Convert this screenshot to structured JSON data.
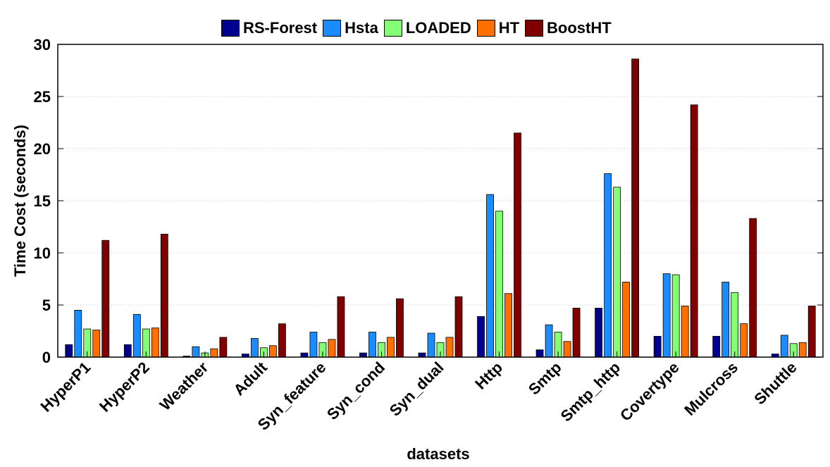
{
  "chart_data": {
    "type": "bar",
    "title": "",
    "xlabel": "datasets",
    "ylabel": "Time Cost (seconds)",
    "ylim": [
      0,
      30
    ],
    "yticks": [
      0,
      5,
      10,
      15,
      20,
      25,
      30
    ],
    "grid": "horizontal dotted",
    "legend_position": "top",
    "categories": [
      "HyperP1",
      "HyperP2",
      "Weather",
      "Adult",
      "Syn_feature",
      "Syn_cond",
      "Syn_dual",
      "Http",
      "Smtp",
      "Smtp_http",
      "Covertype",
      "Mulcross",
      "Shuttle"
    ],
    "series": [
      {
        "name": "RS-Forest",
        "color": "#00008f",
        "values": [
          1.2,
          1.2,
          0.1,
          0.3,
          0.4,
          0.4,
          0.4,
          3.9,
          0.7,
          4.7,
          2.0,
          2.0,
          0.3
        ]
      },
      {
        "name": "Hsta",
        "color": "#1a8cff",
        "values": [
          4.5,
          4.1,
          1.0,
          1.8,
          2.4,
          2.4,
          2.3,
          15.6,
          3.1,
          17.6,
          8.0,
          7.2,
          2.1
        ]
      },
      {
        "name": "LOADED",
        "color": "#85ff73",
        "values": [
          2.7,
          2.7,
          0.4,
          0.9,
          1.4,
          1.4,
          1.4,
          14.0,
          2.4,
          16.3,
          7.9,
          6.2,
          1.3
        ]
      },
      {
        "name": "HT",
        "color": "#ff7000",
        "values": [
          2.6,
          2.8,
          0.8,
          1.1,
          1.7,
          1.9,
          1.9,
          6.1,
          1.5,
          7.2,
          4.9,
          3.2,
          1.4
        ]
      },
      {
        "name": "BoostHT",
        "color": "#800000",
        "values": [
          11.2,
          11.8,
          1.9,
          3.2,
          5.8,
          5.6,
          5.8,
          21.5,
          4.7,
          28.6,
          24.2,
          13.3,
          4.9
        ]
      }
    ]
  }
}
